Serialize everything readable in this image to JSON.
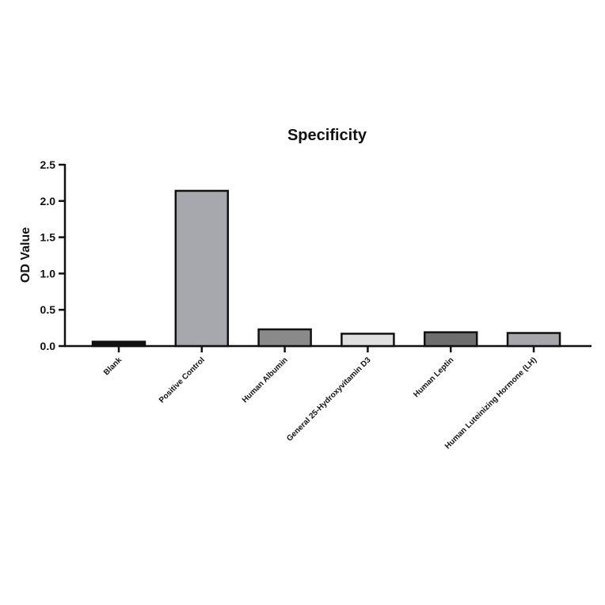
{
  "chart_data": {
    "type": "bar",
    "title": "Specificity",
    "y_label": "OD Value",
    "categories": [
      "Blank",
      "Positive Control",
      "Human Albumin",
      "General 25-Hydroxyvitamin D3",
      "Human Leptin",
      "Human Luteinizing Hormone (LH)"
    ],
    "values": [
      0.06,
      2.14,
      0.23,
      0.17,
      0.19,
      0.18
    ],
    "colors": [
      "#111111",
      "#a7a7ae",
      "#8a8a8a",
      "#e0e0e0",
      "#6e6e6e",
      "#a6a6ab"
    ],
    "ylim": [
      0,
      2.5
    ],
    "yticks": [
      {
        "value": 0,
        "label": "0.0"
      },
      0.5,
      {
        "value": 1,
        "label": "1.0"
      },
      1.5,
      {
        "value": 2,
        "label": "2.0"
      },
      2.5
    ],
    "grid": false
  }
}
